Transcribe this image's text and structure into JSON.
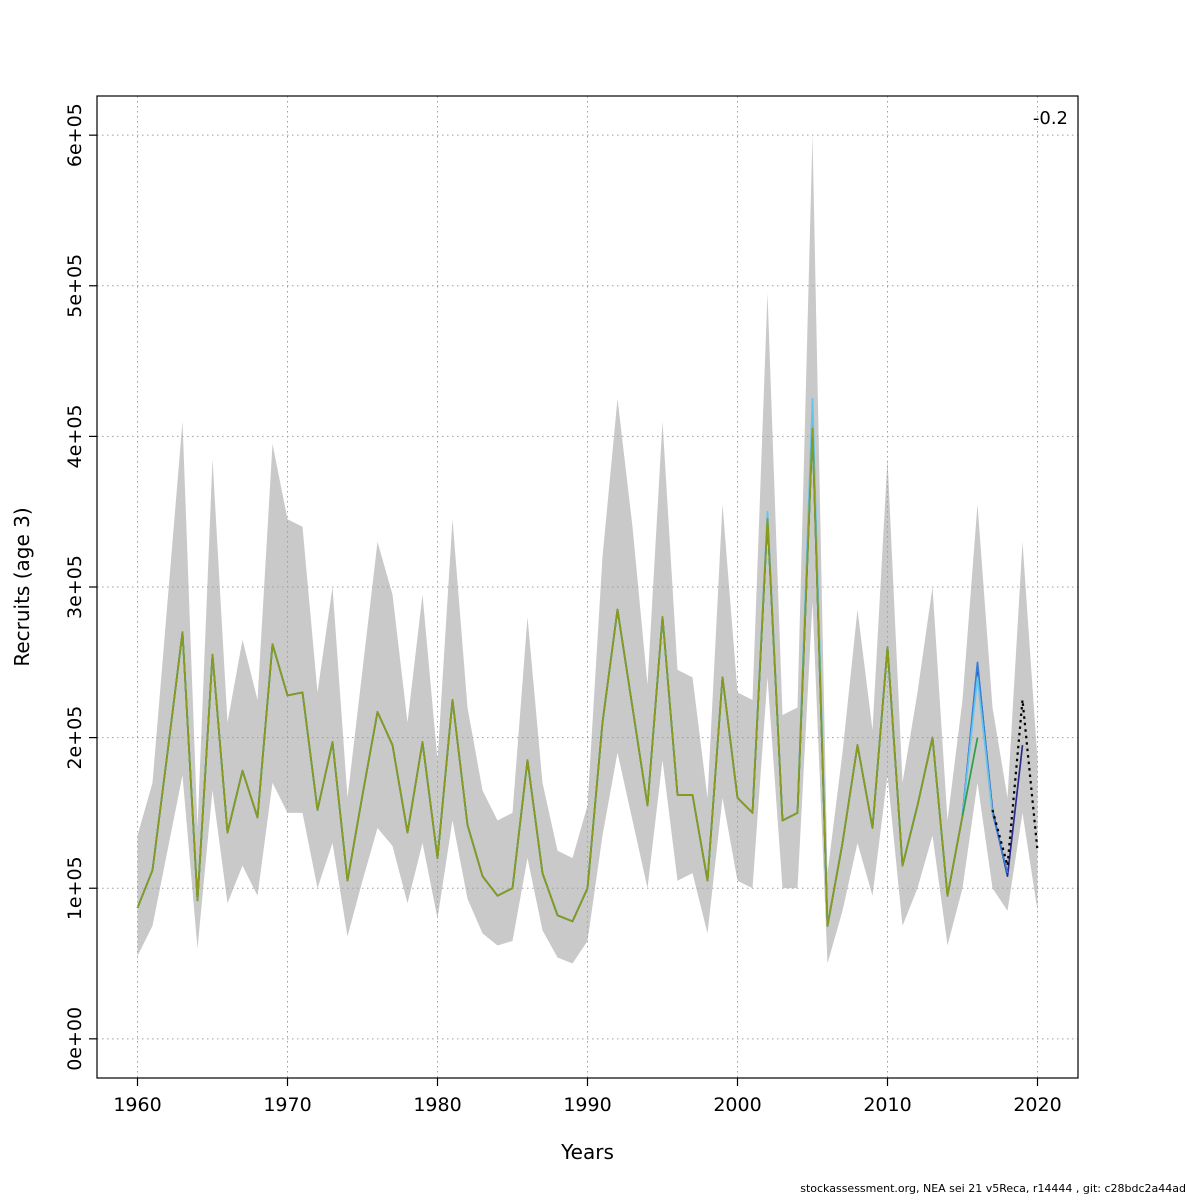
{
  "chart_data": {
    "type": "line",
    "title": "",
    "xlabel": "Years",
    "ylabel": "Recruits (age 3)",
    "annotation": "-0.2",
    "footer": "stockassessment.org, NEA sei 21 v5Reca, r14444 , git: c28bdc2a44ad",
    "grid": "dotted",
    "legend": "none",
    "xlim": [
      1957.3,
      2022.7
    ],
    "ylim": [
      -26000,
      626000
    ],
    "xticks": [
      1960,
      1970,
      1980,
      1990,
      2000,
      2010,
      2020
    ],
    "yticks": [
      0,
      100000,
      200000,
      300000,
      400000,
      500000,
      600000
    ],
    "ytick_labels": [
      "0e+00",
      "1e+05",
      "2e+05",
      "3e+05",
      "4e+05",
      "5e+05",
      "6e+05"
    ],
    "years": [
      1960,
      1961,
      1962,
      1963,
      1964,
      1965,
      1966,
      1967,
      1968,
      1969,
      1970,
      1971,
      1972,
      1973,
      1974,
      1975,
      1976,
      1977,
      1978,
      1979,
      1980,
      1981,
      1982,
      1983,
      1984,
      1985,
      1986,
      1987,
      1988,
      1989,
      1990,
      1991,
      1992,
      1993,
      1994,
      1995,
      1996,
      1997,
      1998,
      1999,
      2000,
      2001,
      2002,
      2003,
      2004,
      2005,
      2006,
      2007,
      2008,
      2009,
      2010,
      2011,
      2012,
      2013,
      2014,
      2015,
      2016,
      2017,
      2018,
      2019,
      2020
    ],
    "band": {
      "color": "#c9c9c9",
      "low": [
        55000,
        75000,
        125000,
        175000,
        60000,
        165000,
        90000,
        115000,
        95000,
        170000,
        150000,
        150000,
        100000,
        130000,
        68000,
        105000,
        140000,
        128000,
        90000,
        130000,
        80000,
        145000,
        93000,
        70000,
        62000,
        65000,
        120000,
        72000,
        54000,
        50000,
        65000,
        135000,
        190000,
        145000,
        100000,
        185000,
        105000,
        110000,
        70000,
        160000,
        105000,
        100000,
        240000,
        100000,
        100000,
        290000,
        50000,
        85000,
        130000,
        95000,
        175000,
        75000,
        100000,
        135000,
        62000,
        100000,
        170000,
        100000,
        85000,
        150000,
        85000
      ],
      "high": [
        135000,
        170000,
        290000,
        410000,
        140000,
        385000,
        210000,
        265000,
        225000,
        395000,
        345000,
        340000,
        230000,
        300000,
        160000,
        245000,
        330000,
        295000,
        210000,
        295000,
        185000,
        345000,
        220000,
        165000,
        145000,
        150000,
        280000,
        170000,
        125000,
        120000,
        155000,
        320000,
        425000,
        340000,
        235000,
        410000,
        245000,
        240000,
        160000,
        355000,
        230000,
        225000,
        495000,
        215000,
        220000,
        600000,
        110000,
        190000,
        285000,
        205000,
        385000,
        170000,
        230000,
        300000,
        145000,
        225000,
        355000,
        220000,
        160000,
        330000,
        185000
      ]
    },
    "base_values": [
      87000,
      112000,
      190000,
      270000,
      92000,
      255000,
      137000,
      178000,
      147000,
      262000,
      228000,
      230000,
      152000,
      197000,
      105000,
      162000,
      217000,
      195000,
      137000,
      197000,
      120000,
      225000,
      142000,
      108000,
      95000,
      100000,
      185000,
      110000,
      82000,
      78000,
      100000,
      210000,
      285000,
      220000,
      155000,
      280000,
      162000,
      162000,
      105000,
      240000,
      160000,
      150000,
      345000,
      145000,
      150000,
      405000,
      75000,
      130000,
      195000,
      140000,
      260000,
      115000,
      155000,
      200000,
      95000,
      148000
    ],
    "series": [
      {
        "name": "retro-peel-navy",
        "color": "#2b2b8f",
        "end_year": 2019,
        "overrides": {
          "2016": 248000,
          "2017": 152000,
          "2018": 108000,
          "2019": 195000
        }
      },
      {
        "name": "retro-peel-blue",
        "color": "#3a7bd5",
        "end_year": 2018,
        "overrides": {
          "2005": 418000,
          "2016": 250000,
          "2017": 150000,
          "2018": 110000
        }
      },
      {
        "name": "retro-peel-cyan",
        "color": "#63c5ea",
        "end_year": 2017,
        "overrides": {
          "2002": 350000,
          "2005": 425000,
          "2016": 240000,
          "2017": 149000
        }
      },
      {
        "name": "retro-peel-green",
        "color": "#2f9e44",
        "end_year": 2016,
        "overrides": {
          "2016": 200000
        }
      },
      {
        "name": "retro-peel-olive",
        "color": "#8a9a1c",
        "end_year": 2015,
        "overrides": {}
      },
      {
        "name": "current-run-forecast",
        "color": "#000000",
        "dash": "2.5 4",
        "width": 2.2,
        "start_year": 2017,
        "end_year": 2020,
        "overrides": {
          "2017": 152000,
          "2018": 115000,
          "2019": 225000,
          "2020": 125000
        }
      }
    ]
  }
}
